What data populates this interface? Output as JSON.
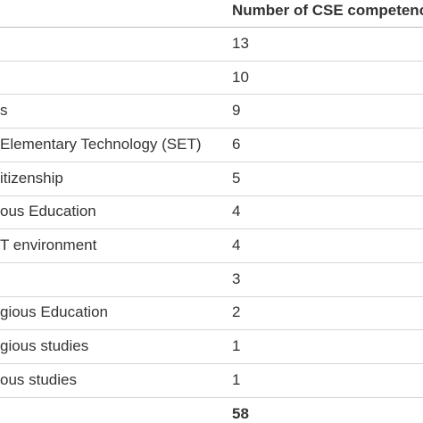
{
  "table": {
    "header": "Number of CSE competenc",
    "rows": [
      {
        "value": 13
      },
      {
        "value": 10
      },
      {
        "label": "s",
        "value": 9
      },
      {
        "label": "Elementary Technology (SET)",
        "value": 6
      },
      {
        "label": "itizenship",
        "value": 5
      },
      {
        "label": "ous Education",
        "value": 4
      },
      {
        "label": "T environment",
        "value": 4
      },
      {
        "value": 3
      },
      {
        "label": "gious Education",
        "value": 2
      },
      {
        "label": "gious studies",
        "value": 1
      },
      {
        "label": "ous studies",
        "value": 1
      },
      {
        "value": 58,
        "bold": true
      }
    ]
  }
}
